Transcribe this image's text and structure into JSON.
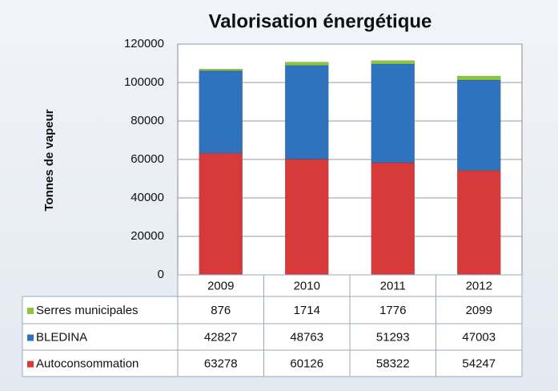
{
  "chart_data": {
    "type": "stacked_bar",
    "title": "Valorisation énergétique",
    "ylabel": "Tonnes de vapeur",
    "categories": [
      "2009",
      "2010",
      "2011",
      "2012"
    ],
    "series": [
      {
        "name": "Autoconsommation",
        "color": "#d63a3a",
        "values": [
          63278,
          60126,
          58322,
          54247
        ]
      },
      {
        "name": "BLEDINA",
        "color": "#2f73bf",
        "values": [
          42827,
          48763,
          51293,
          47003
        ]
      },
      {
        "name": "Serres municipales",
        "color": "#8cc63f",
        "values": [
          876,
          1714,
          1776,
          2099
        ]
      }
    ],
    "ylim": [
      0,
      120000
    ],
    "yticks": [
      0,
      20000,
      40000,
      60000,
      80000,
      100000,
      120000
    ],
    "grid": true
  }
}
